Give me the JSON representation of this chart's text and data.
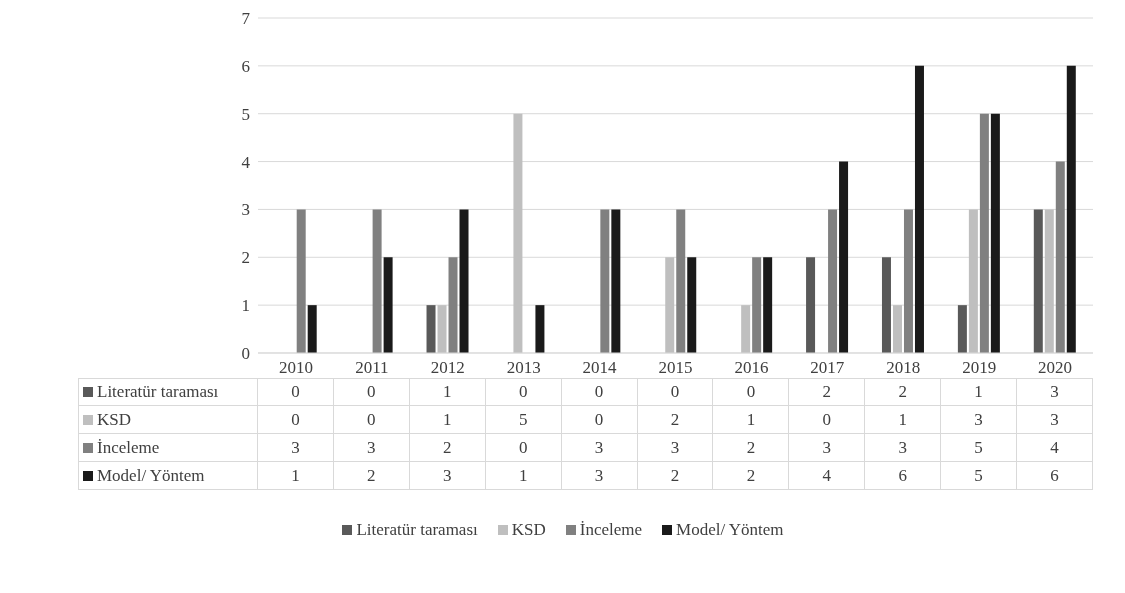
{
  "chart_data": {
    "type": "bar",
    "categories": [
      "2010",
      "2011",
      "2012",
      "2013",
      "2014",
      "2015",
      "2016",
      "2017",
      "2018",
      "2019",
      "2020"
    ],
    "series": [
      {
        "name": "Literatür taraması",
        "color": "#595959",
        "values": [
          0,
          0,
          1,
          0,
          0,
          0,
          0,
          2,
          2,
          1,
          3
        ]
      },
      {
        "name": "KSD",
        "color": "#bfbfbf",
        "values": [
          0,
          0,
          1,
          5,
          0,
          2,
          1,
          0,
          1,
          3,
          3
        ]
      },
      {
        "name": "İnceleme",
        "color": "#808080",
        "values": [
          3,
          3,
          2,
          0,
          3,
          3,
          2,
          3,
          3,
          5,
          4
        ]
      },
      {
        "name": "Model/ Yöntem",
        "color": "#1a1a1a",
        "values": [
          1,
          2,
          3,
          1,
          3,
          2,
          2,
          4,
          6,
          5,
          6
        ]
      }
    ],
    "ylim": [
      0,
      7
    ],
    "yticks": [
      0,
      1,
      2,
      3,
      4,
      5,
      6,
      7
    ],
    "grid": "y",
    "legend": "bottom",
    "data_labels": true
  }
}
